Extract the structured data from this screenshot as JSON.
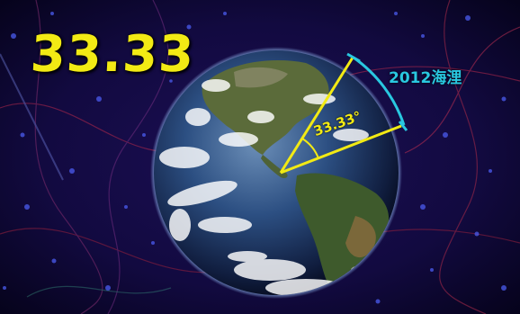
{
  "headline": {
    "value": "33.33"
  },
  "annotations": {
    "angle_text": "33.33°",
    "distance_text": "2012海浬"
  },
  "colors": {
    "headline": "#f2ea14",
    "angle_lines": "#f2ea14",
    "arc": "#29c8e0",
    "distance_text": "#29c8e0",
    "background": "#0b0630"
  }
}
